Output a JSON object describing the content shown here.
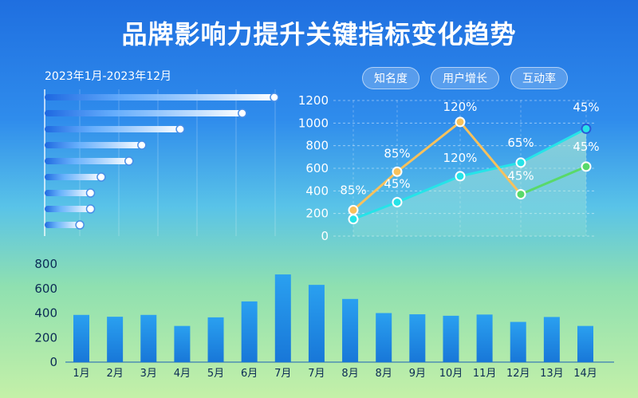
{
  "header": {
    "title": "品牌影响力提升关键指标变化趋势",
    "date_range": "2023年1月-2023年12月"
  },
  "tabs": [
    {
      "label": "知名度"
    },
    {
      "label": "用户增长"
    },
    {
      "label": "互动率"
    }
  ],
  "colors": {
    "gold_line": "#f7c15c",
    "cyan_line": "#26e3e8",
    "green_line": "#59d96a",
    "bar_top": "#2aa0f0",
    "bar_bottom": "#1877d8"
  },
  "chart_data": [
    {
      "type": "bar",
      "orientation": "horizontal",
      "values": [
        100,
        85,
        56,
        38,
        32,
        19,
        14,
        14,
        9
      ],
      "xlim": [
        0,
        100
      ],
      "grid": true
    },
    {
      "type": "line",
      "ylim": [
        0,
        1200
      ],
      "y_ticks": [
        "1200",
        "1000",
        "800",
        "600",
        "400",
        "200",
        "0"
      ],
      "series": [
        {
          "color": "#f7c15c",
          "points": [
            [
              0,
              230
            ],
            [
              1,
              570
            ],
            [
              2,
              1010
            ],
            [
              3,
              370
            ]
          ],
          "labels": [
            "85%",
            "85%",
            "120%",
            ""
          ]
        },
        {
          "color": "#26e3e8",
          "points": [
            [
              0,
              150
            ],
            [
              1,
              300
            ],
            [
              2,
              530
            ],
            [
              3,
              650
            ],
            [
              4,
              950
            ]
          ],
          "labels": [
            "",
            "45%",
            "120%",
            "65%",
            "45%"
          ]
        },
        {
          "color": "#59d96a",
          "points": [
            [
              3,
              370
            ],
            [
              4,
              615
            ]
          ],
          "labels": [
            "45%",
            "45%"
          ]
        }
      ],
      "grid": true
    },
    {
      "type": "bar",
      "categories": [
        "1月",
        "2月",
        "3月",
        "4月",
        "5月",
        "6月",
        "7月",
        "7月",
        "8月",
        "8月",
        "9月",
        "10月",
        "11月",
        "12月",
        "13月",
        "14月"
      ],
      "values": [
        385,
        370,
        385,
        295,
        365,
        495,
        715,
        630,
        515,
        400,
        390,
        378,
        388,
        328,
        368,
        295
      ],
      "ylim": [
        0,
        800
      ],
      "y_ticks": [
        "800",
        "600",
        "400",
        "200",
        "0"
      ]
    }
  ]
}
